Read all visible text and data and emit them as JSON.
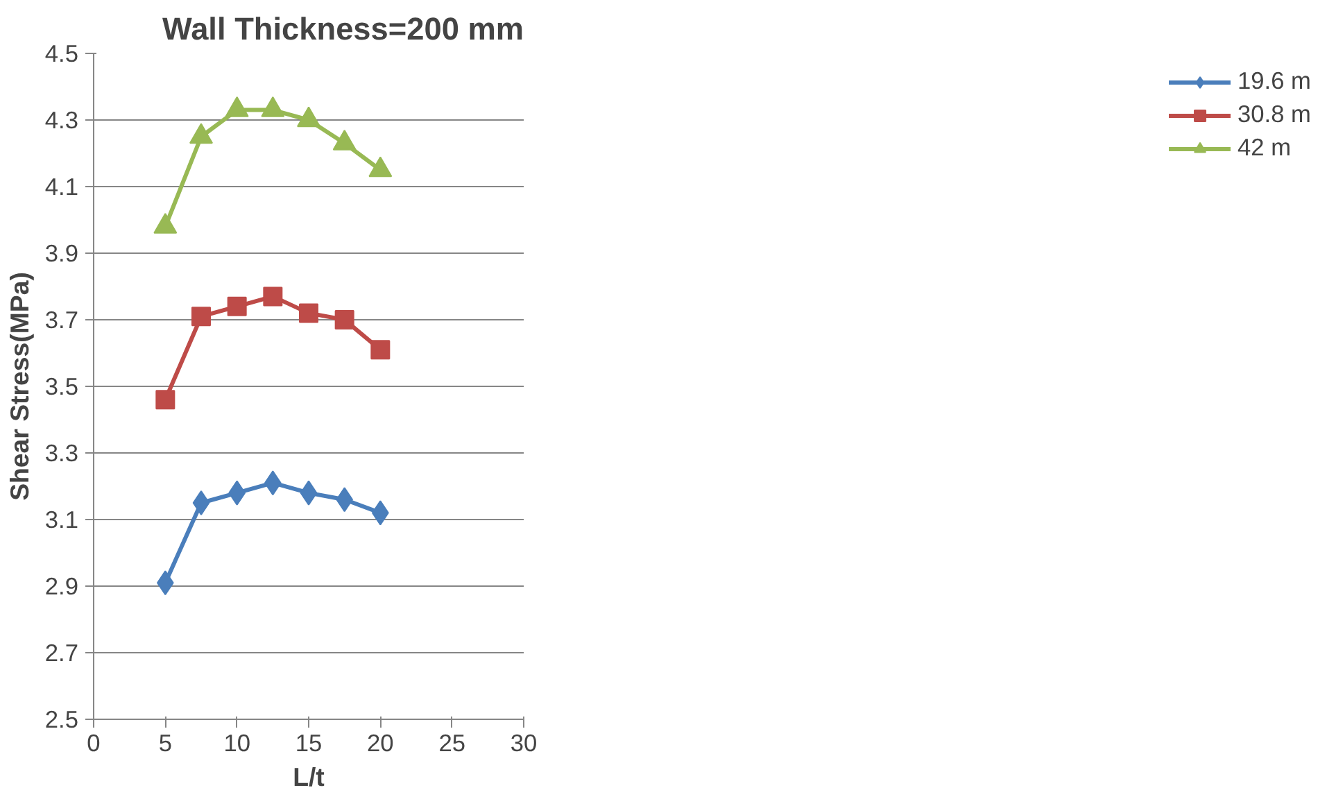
{
  "chart_data": {
    "type": "line",
    "title": "Wall Thickness=200 mm",
    "xlabel": "L/t",
    "ylabel": "Shear Stress(MPa)",
    "x": [
      5,
      7.5,
      10,
      12.5,
      15,
      17.5,
      20
    ],
    "series": [
      {
        "name": "19.6 m",
        "color": "#4a7ebb",
        "marker": "diamond",
        "values": [
          2.91,
          3.15,
          3.18,
          3.21,
          3.18,
          3.16,
          3.12
        ]
      },
      {
        "name": "30.8 m",
        "color": "#be4b48",
        "marker": "square",
        "values": [
          3.46,
          3.71,
          3.74,
          3.77,
          3.72,
          3.7,
          3.61
        ]
      },
      {
        "name": "42 m",
        "color": "#98b954",
        "marker": "triangle",
        "values": [
          3.98,
          4.25,
          4.33,
          4.33,
          4.3,
          4.23,
          4.15
        ]
      }
    ],
    "xlim": [
      0,
      30
    ],
    "xticks": [
      0,
      5,
      10,
      15,
      20,
      25,
      30
    ],
    "ylim": [
      2.5,
      4.5
    ],
    "yticks": [
      {
        "value": 2.5,
        "label": "2.5"
      },
      {
        "value": 2.7,
        "label": "2.7"
      },
      {
        "value": 2.9,
        "label": "2.9"
      },
      {
        "value": 3.1,
        "label": "3.1"
      },
      {
        "value": 3.3,
        "label": "3.3"
      },
      {
        "value": 3.5,
        "label": "3.5"
      },
      {
        "value": 3.7,
        "label": "3.7"
      },
      {
        "value": 3.9,
        "label": "3.9"
      },
      {
        "value": 4.1,
        "label": "4.1"
      },
      {
        "value": 4.3,
        "label": "4.3"
      },
      {
        "value": 4.5,
        "label": "4.5"
      }
    ],
    "grid": "y",
    "legend": "right",
    "line_style": "solid"
  }
}
